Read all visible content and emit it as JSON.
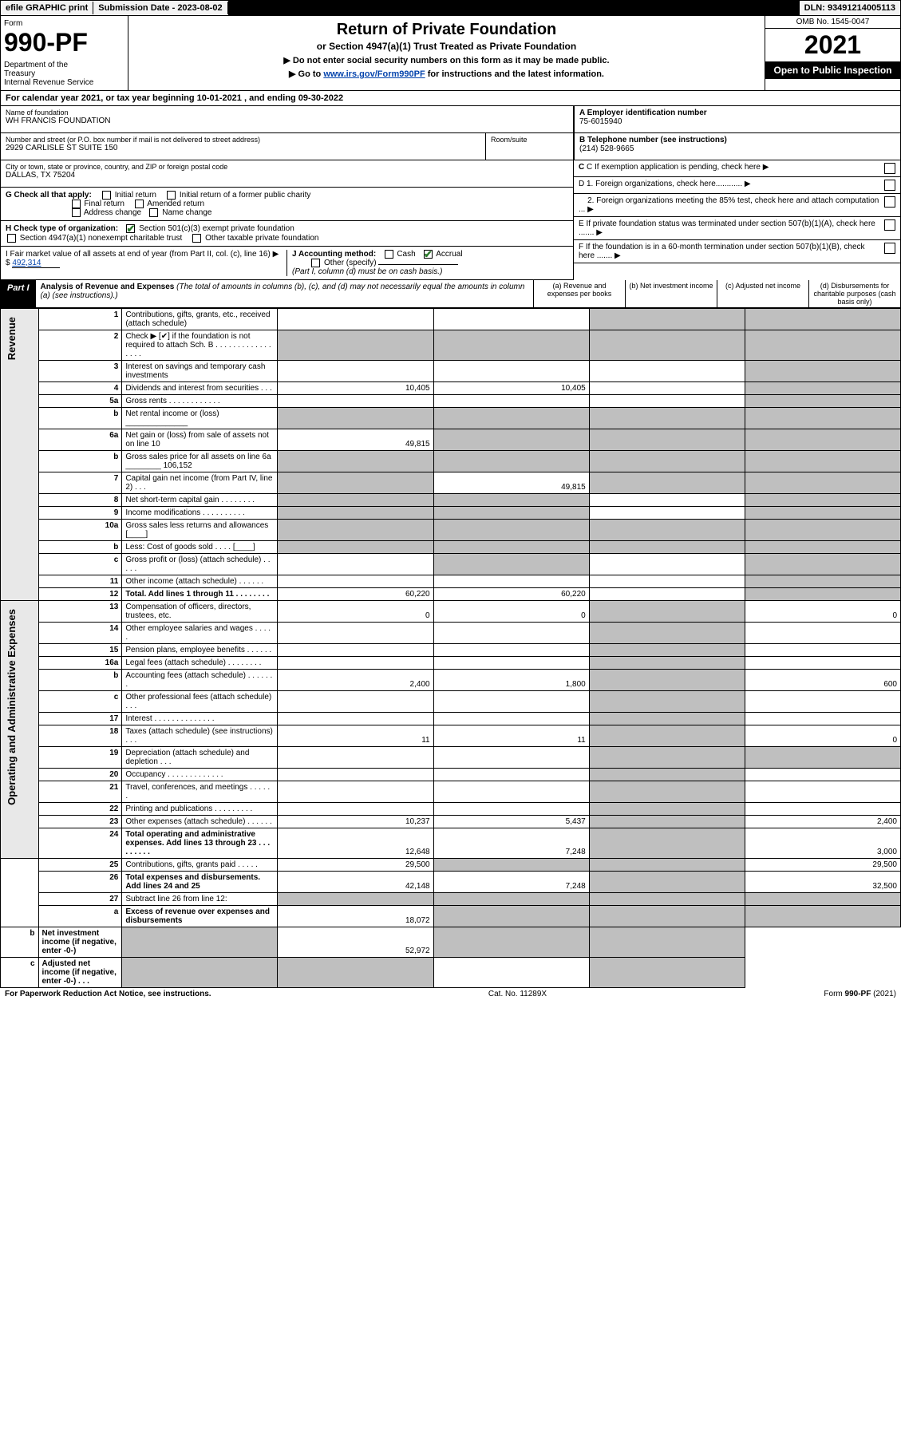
{
  "top": {
    "efile": "efile GRAPHIC print",
    "subdate_lbl": "Submission Date - 2023-08-02",
    "dln": "DLN: 93491214005113"
  },
  "header": {
    "form_word": "Form",
    "form_no": "990-PF",
    "dept": "Department of the Treasury\nInternal Revenue Service",
    "title": "Return of Private Foundation",
    "subtitle": "or Section 4947(a)(1) Trust Treated as Private Foundation",
    "note1": "▶ Do not enter social security numbers on this form as it may be made public.",
    "note2_pre": "▶ Go to ",
    "note2_link": "www.irs.gov/Form990PF",
    "note2_post": " for instructions and the latest information.",
    "omb": "OMB No. 1545-0047",
    "year": "2021",
    "open": "Open to Public Inspection"
  },
  "cal": "For calendar year 2021, or tax year beginning 10-01-2021             , and ending 09-30-2022",
  "entity": {
    "name_lbl": "Name of foundation",
    "name": "WH FRANCIS FOUNDATION",
    "addr_lbl": "Number and street (or P.O. box number if mail is not delivered to street address)",
    "addr": "2929 CARLISLE ST SUITE 150",
    "room_lbl": "Room/suite",
    "city_lbl": "City or town, state or province, country, and ZIP or foreign postal code",
    "city": "DALLAS, TX  75204",
    "A_lbl": "A Employer identification number",
    "A": "75-6015940",
    "B_lbl": "B Telephone number (see instructions)",
    "B": "(214) 528-9665",
    "C": "C If exemption application is pending, check here",
    "D1": "D 1. Foreign organizations, check here............",
    "D2": "2. Foreign organizations meeting the 85% test, check here and attach computation ...",
    "E": "E If private foundation status was terminated under section 507(b)(1)(A), check here .......",
    "F": "F If the foundation is in a 60-month termination under section 507(b)(1)(B), check here .......",
    "G": "G Check all that apply:",
    "G_opts": [
      "Initial return",
      "Initial return of a former public charity",
      "Final return",
      "Amended return",
      "Address change",
      "Name change"
    ],
    "H": "H Check type of organization:",
    "H1": "Section 501(c)(3) exempt private foundation",
    "H2": "Section 4947(a)(1) nonexempt charitable trust",
    "H3": "Other taxable private foundation",
    "I": "I Fair market value of all assets at end of year (from Part II, col. (c), line 16) ▶ $",
    "I_val": "492,314",
    "J": "J Accounting method:",
    "J_cash": "Cash",
    "J_accr": "Accrual",
    "J_other": "Other (specify)",
    "J_note": "(Part I, column (d) must be on cash basis.)"
  },
  "part1": {
    "label": "Part I",
    "title": "Analysis of Revenue and Expenses",
    "title_note": " (The total of amounts in columns (b), (c), and (d) may not necessarily equal the amounts in column (a) (see instructions).)",
    "col_a": "(a) Revenue and expenses per books",
    "col_b": "(b) Net investment income",
    "col_c": "(c) Adjusted net income",
    "col_d": "(d) Disbursements for charitable purposes (cash basis only)"
  },
  "sides": {
    "rev": "Revenue",
    "op": "Operating and Administrative Expenses"
  },
  "rows": [
    {
      "n": "1",
      "d": "Contributions, gifts, grants, etc., received (attach schedule)",
      "a": "",
      "b": "",
      "c_sh": true,
      "dd_sh": true
    },
    {
      "n": "2",
      "d": "Check ▶ [✔] if the foundation is not required to attach Sch. B  . . . . . . . . . . . . . . . . .",
      "a_sh": true,
      "b_sh": true,
      "c_sh": true,
      "dd_sh": true
    },
    {
      "n": "3",
      "d": "Interest on savings and temporary cash investments",
      "a": "",
      "b": "",
      "c": "",
      "dd_sh": true
    },
    {
      "n": "4",
      "d": "Dividends and interest from securities    . . .",
      "a": "10,405",
      "b": "10,405",
      "c": "",
      "dd_sh": true
    },
    {
      "n": "5a",
      "d": "Gross rents   . . . . . . . . . . . .",
      "a": "",
      "b": "",
      "c": "",
      "dd_sh": true
    },
    {
      "n": "b",
      "d": "Net rental income or (loss)  ______________",
      "a_sh": true,
      "b_sh": true,
      "c_sh": true,
      "dd_sh": true
    },
    {
      "n": "6a",
      "d": "Net gain or (loss) from sale of assets not on line 10",
      "a": "49,815",
      "b_sh": true,
      "c_sh": true,
      "dd_sh": true
    },
    {
      "n": "b",
      "d": "Gross sales price for all assets on line 6a ________ 106,152",
      "a_sh": true,
      "b_sh": true,
      "c_sh": true,
      "dd_sh": true
    },
    {
      "n": "7",
      "d": "Capital gain net income (from Part IV, line 2)   . . .",
      "a_sh": true,
      "b": "49,815",
      "c_sh": true,
      "dd_sh": true
    },
    {
      "n": "8",
      "d": "Net short-term capital gain  . . . . . . . .",
      "a_sh": true,
      "b_sh": true,
      "c": "",
      "dd_sh": true
    },
    {
      "n": "9",
      "d": "Income modifications . . . . . . . . . .",
      "a_sh": true,
      "b_sh": true,
      "c": "",
      "dd_sh": true
    },
    {
      "n": "10a",
      "d": "Gross sales less returns and allowances  [____]",
      "a_sh": true,
      "b_sh": true,
      "c_sh": true,
      "dd_sh": true
    },
    {
      "n": "b",
      "d": "Less: Cost of goods sold    . . . .  [____]",
      "a_sh": true,
      "b_sh": true,
      "c_sh": true,
      "dd_sh": true
    },
    {
      "n": "c",
      "d": "Gross profit or (loss) (attach schedule)   . . . . .",
      "a": "",
      "b_sh": true,
      "c": "",
      "dd_sh": true
    },
    {
      "n": "11",
      "d": "Other income (attach schedule)    . . . . . .",
      "a": "",
      "b": "",
      "c": "",
      "dd_sh": true
    },
    {
      "n": "12",
      "d": "Total. Add lines 1 through 11  . . . . . . . .",
      "a": "60,220",
      "b": "60,220",
      "c": "",
      "dd_sh": true,
      "bold": true
    },
    {
      "n": "13",
      "d": "Compensation of officers, directors, trustees, etc.",
      "a": "0",
      "b": "0",
      "c_sh": true,
      "dd": "0"
    },
    {
      "n": "14",
      "d": "Other employee salaries and wages    . . . . .",
      "a": "",
      "b": "",
      "c_sh": true,
      "dd": ""
    },
    {
      "n": "15",
      "d": "Pension plans, employee benefits  . . . . . .",
      "a": "",
      "b": "",
      "c_sh": true,
      "dd": ""
    },
    {
      "n": "16a",
      "d": "Legal fees (attach schedule) . . . . . . . .",
      "a": "",
      "b": "",
      "c_sh": true,
      "dd": ""
    },
    {
      "n": "b",
      "d": "Accounting fees (attach schedule) . . . . . . .",
      "a": "2,400",
      "b": "1,800",
      "c_sh": true,
      "dd": "600"
    },
    {
      "n": "c",
      "d": "Other professional fees (attach schedule)    . . .",
      "a": "",
      "b": "",
      "c_sh": true,
      "dd": ""
    },
    {
      "n": "17",
      "d": "Interest . . . . . . . . . . . . . .",
      "a": "",
      "b": "",
      "c_sh": true,
      "dd": ""
    },
    {
      "n": "18",
      "d": "Taxes (attach schedule) (see instructions)      . . .",
      "a": "11",
      "b": "11",
      "c_sh": true,
      "dd": "0"
    },
    {
      "n": "19",
      "d": "Depreciation (attach schedule) and depletion    . . .",
      "a": "",
      "b": "",
      "c_sh": true,
      "dd_sh": true
    },
    {
      "n": "20",
      "d": "Occupancy . . . . . . . . . . . . .",
      "a": "",
      "b": "",
      "c_sh": true,
      "dd": ""
    },
    {
      "n": "21",
      "d": "Travel, conferences, and meetings . . . . . .",
      "a": "",
      "b": "",
      "c_sh": true,
      "dd": ""
    },
    {
      "n": "22",
      "d": "Printing and publications . . . . . . . . .",
      "a": "",
      "b": "",
      "c_sh": true,
      "dd": ""
    },
    {
      "n": "23",
      "d": "Other expenses (attach schedule) . . . . . .",
      "a": "10,237",
      "b": "5,437",
      "c_sh": true,
      "dd": "2,400"
    },
    {
      "n": "24",
      "d": "Total operating and administrative expenses. Add lines 13 through 23  . . . . . . . . .",
      "a": "12,648",
      "b": "7,248",
      "c_sh": true,
      "dd": "3,000",
      "bold": true
    },
    {
      "n": "25",
      "d": "Contributions, gifts, grants paid      . . . . .",
      "a": "29,500",
      "b_sh": true,
      "c_sh": true,
      "dd": "29,500"
    },
    {
      "n": "26",
      "d": "Total expenses and disbursements. Add lines 24 and 25",
      "a": "42,148",
      "b": "7,248",
      "c_sh": true,
      "dd": "32,500",
      "bold": true
    },
    {
      "n": "27",
      "d": "Subtract line 26 from line 12:",
      "a_sh": true,
      "b_sh": true,
      "c_sh": true,
      "dd_sh": true
    },
    {
      "n": "a",
      "d": "Excess of revenue over expenses and disbursements",
      "a": "18,072",
      "b_sh": true,
      "c_sh": true,
      "dd_sh": true,
      "bold": true
    },
    {
      "n": "b",
      "d": "Net investment income (if negative, enter -0-)",
      "a_sh": true,
      "b": "52,972",
      "c_sh": true,
      "dd_sh": true,
      "bold": true
    },
    {
      "n": "c",
      "d": "Adjusted net income (if negative, enter -0-)   . . .",
      "a_sh": true,
      "b_sh": true,
      "c": "",
      "dd_sh": true,
      "bold": true
    }
  ],
  "footer": {
    "left": "For Paperwork Reduction Act Notice, see instructions.",
    "mid": "Cat. No. 11289X",
    "right": "Form 990-PF (2021)"
  },
  "colors": {
    "shade": "#bfbfbf",
    "black": "#000000",
    "link": "#0645ad",
    "check": "#2a7a2a"
  }
}
